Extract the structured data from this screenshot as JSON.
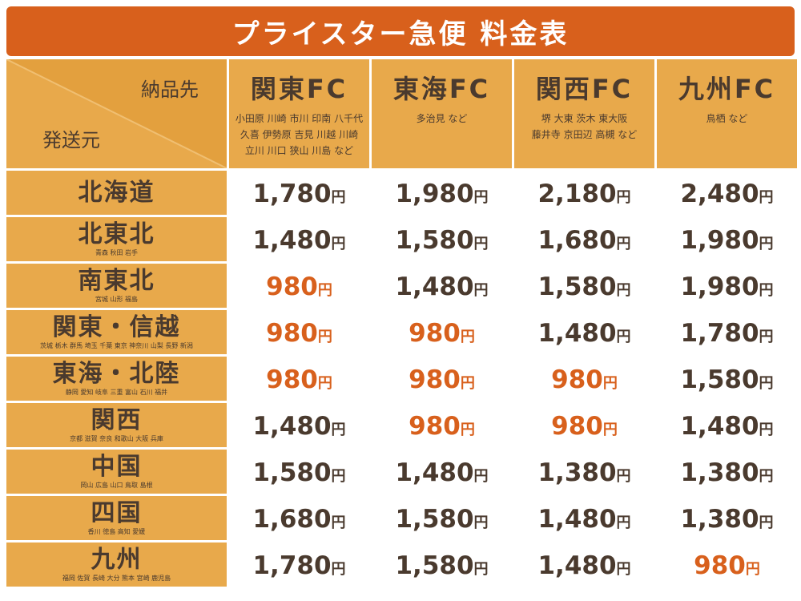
{
  "title": "プライスター急便 料金表",
  "corner": {
    "destination_label": "納品先",
    "origin_label": "発送元"
  },
  "currency": "円",
  "highlight_color": "#d8601c",
  "destinations": [
    {
      "name": "関東FC",
      "areas": "小田原 川崎 市川 印南 八千代\n久喜 伊勢原 吉見 川越 川崎\n立川 川口 狭山 川島 など"
    },
    {
      "name": "東海FC",
      "areas": "多治見 など"
    },
    {
      "name": "関西FC",
      "areas": "堺 大東 茨木 東大阪\n藤井寺 京田辺 高槻 など"
    },
    {
      "name": "九州FC",
      "areas": "鳥栖 など"
    }
  ],
  "rows": [
    {
      "origin": "北海道",
      "prefectures": "",
      "prices": [
        {
          "value": "1,780",
          "highlight": false
        },
        {
          "value": "1,980",
          "highlight": false
        },
        {
          "value": "2,180",
          "highlight": false
        },
        {
          "value": "2,480",
          "highlight": false
        }
      ]
    },
    {
      "origin": "北東北",
      "prefectures": "青森 秋田 岩手",
      "prices": [
        {
          "value": "1,480",
          "highlight": false
        },
        {
          "value": "1,580",
          "highlight": false
        },
        {
          "value": "1,680",
          "highlight": false
        },
        {
          "value": "1,980",
          "highlight": false
        }
      ]
    },
    {
      "origin": "南東北",
      "prefectures": "宮城 山形 福島",
      "prices": [
        {
          "value": "980",
          "highlight": true
        },
        {
          "value": "1,480",
          "highlight": false
        },
        {
          "value": "1,580",
          "highlight": false
        },
        {
          "value": "1,980",
          "highlight": false
        }
      ]
    },
    {
      "origin": "関東・信越",
      "prefectures": "茨城 栃木 群馬 埼玉 千葉 東京 神奈川 山梨 長野 新潟",
      "prices": [
        {
          "value": "980",
          "highlight": true
        },
        {
          "value": "980",
          "highlight": true
        },
        {
          "value": "1,480",
          "highlight": false
        },
        {
          "value": "1,780",
          "highlight": false
        }
      ]
    },
    {
      "origin": "東海・北陸",
      "prefectures": "静岡 愛知 岐阜 三重 富山 石川 福井",
      "prices": [
        {
          "value": "980",
          "highlight": true
        },
        {
          "value": "980",
          "highlight": true
        },
        {
          "value": "980",
          "highlight": true
        },
        {
          "value": "1,580",
          "highlight": false
        }
      ]
    },
    {
      "origin": "関西",
      "prefectures": "京都 滋賀 奈良 和歌山 大阪 兵庫",
      "prices": [
        {
          "value": "1,480",
          "highlight": false
        },
        {
          "value": "980",
          "highlight": true
        },
        {
          "value": "980",
          "highlight": true
        },
        {
          "value": "1,480",
          "highlight": false
        }
      ]
    },
    {
      "origin": "中国",
      "prefectures": "岡山 広島 山口 鳥取 島根",
      "prices": [
        {
          "value": "1,580",
          "highlight": false
        },
        {
          "value": "1,480",
          "highlight": false
        },
        {
          "value": "1,380",
          "highlight": false
        },
        {
          "value": "1,380",
          "highlight": false
        }
      ]
    },
    {
      "origin": "四国",
      "prefectures": "香川 徳島 高知 愛媛",
      "prices": [
        {
          "value": "1,680",
          "highlight": false
        },
        {
          "value": "1,580",
          "highlight": false
        },
        {
          "value": "1,480",
          "highlight": false
        },
        {
          "value": "1,380",
          "highlight": false
        }
      ]
    },
    {
      "origin": "九州",
      "prefectures": "福岡 佐賀 長崎 大分 熊本 宮崎 鹿児島",
      "prices": [
        {
          "value": "1,780",
          "highlight": false
        },
        {
          "value": "1,580",
          "highlight": false
        },
        {
          "value": "1,480",
          "highlight": false
        },
        {
          "value": "980",
          "highlight": true
        }
      ]
    }
  ]
}
